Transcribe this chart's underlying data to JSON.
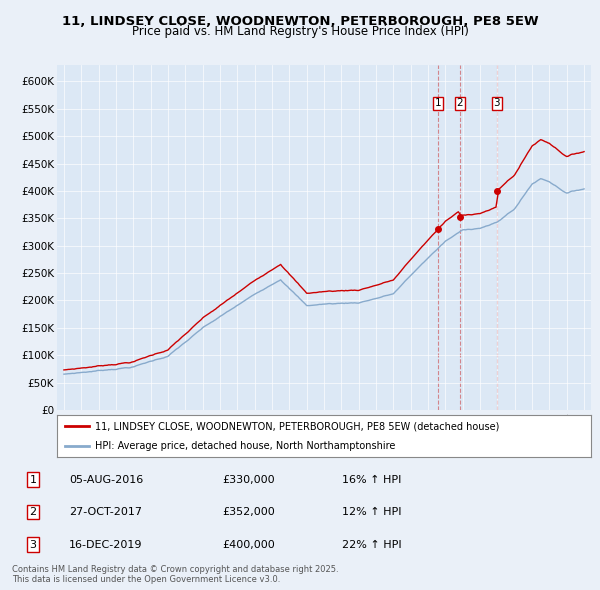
{
  "title_line1": "11, LINDSEY CLOSE, WOODNEWTON, PETERBOROUGH, PE8 5EW",
  "title_line2": "Price paid vs. HM Land Registry's House Price Index (HPI)",
  "background_color": "#eaf0f8",
  "plot_bg_color": "#dce8f5",
  "ylim": [
    0,
    630000
  ],
  "yticks": [
    0,
    50000,
    100000,
    150000,
    200000,
    250000,
    300000,
    350000,
    400000,
    450000,
    500000,
    550000,
    600000
  ],
  "ytick_labels": [
    "£0",
    "£50K",
    "£100K",
    "£150K",
    "£200K",
    "£250K",
    "£300K",
    "£350K",
    "£400K",
    "£450K",
    "£500K",
    "£550K",
    "£600K"
  ],
  "xlim_start": 1994.6,
  "xlim_end": 2025.4,
  "sale_color": "#cc0000",
  "hpi_color": "#88aacc",
  "sale_label": "11, LINDSEY CLOSE, WOODNEWTON, PETERBOROUGH, PE8 5EW (detached house)",
  "hpi_label": "HPI: Average price, detached house, North Northamptonshire",
  "transaction_dates_dec": [
    2016.586,
    2017.828,
    2019.958
  ],
  "transaction_prices": [
    330000,
    352000,
    400000
  ],
  "transaction_labels": [
    "1",
    "2",
    "3"
  ],
  "transaction_info": [
    {
      "num": "1",
      "date": "05-AUG-2016",
      "price": "£330,000",
      "hpi": "16% ↑ HPI"
    },
    {
      "num": "2",
      "date": "27-OCT-2017",
      "price": "£352,000",
      "hpi": "12% ↑ HPI"
    },
    {
      "num": "3",
      "date": "16-DEC-2019",
      "price": "£400,000",
      "hpi": "22% ↑ HPI"
    }
  ],
  "footer": "Contains HM Land Registry data © Crown copyright and database right 2025.\nThis data is licensed under the Open Government Licence v3.0."
}
